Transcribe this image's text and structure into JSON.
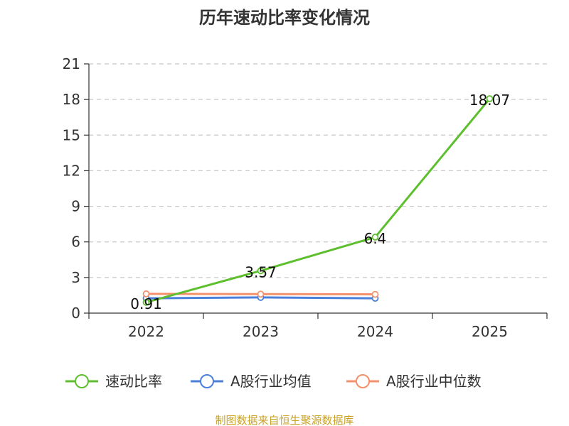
{
  "chart_data": {
    "type": "line",
    "title": "历年速动比率变化情况",
    "categories": [
      "2022",
      "2023",
      "2024",
      "2025"
    ],
    "ylim": [
      0,
      21
    ],
    "yticks": [
      0,
      3,
      6,
      9,
      12,
      15,
      18,
      21
    ],
    "ytick_labels": [
      "0",
      "3",
      "6",
      "9",
      "12",
      "15",
      "18",
      "21"
    ],
    "grid": true,
    "legend_position": "bottom",
    "series": [
      {
        "name": "A股行业均值",
        "color": "#4a7fdc",
        "values": [
          1.25,
          1.32,
          1.25,
          null
        ]
      },
      {
        "name": "A股行业中位数",
        "color": "#f4906a",
        "values": [
          1.62,
          1.6,
          1.58,
          null
        ]
      },
      {
        "name": "速动比率",
        "color": "#5dbf2e",
        "values": [
          0.91,
          3.57,
          6.4,
          18.07
        ],
        "labels": [
          "0.91",
          "3.57",
          "6.4",
          "18.07"
        ]
      }
    ],
    "legend": [
      {
        "name": "速动比率",
        "color": "#5dbf2e"
      },
      {
        "name": "A股行业均值",
        "color": "#4a7fdc"
      },
      {
        "name": "A股行业中位数",
        "color": "#f4906a"
      }
    ],
    "source": "制图数据来自恒生聚源数据库",
    "source_color": "#c9a227"
  }
}
